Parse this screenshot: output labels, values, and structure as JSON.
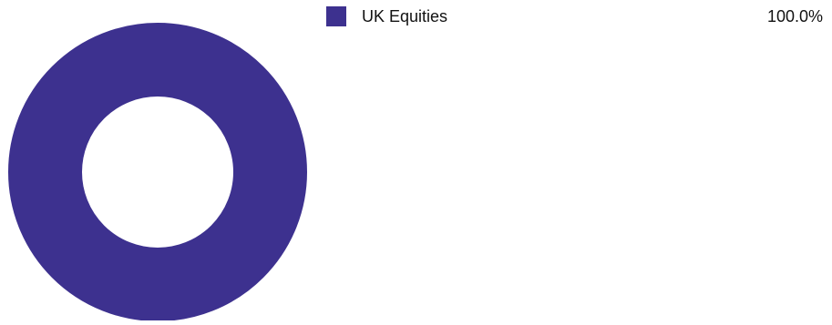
{
  "chart_data": {
    "type": "pie",
    "variant": "donut",
    "title": "",
    "categories": [
      "UK Equities"
    ],
    "values": [
      100.0
    ],
    "value_labels": [
      "100.0%"
    ],
    "colors": [
      "#3d318f"
    ],
    "legend_position": "right"
  }
}
